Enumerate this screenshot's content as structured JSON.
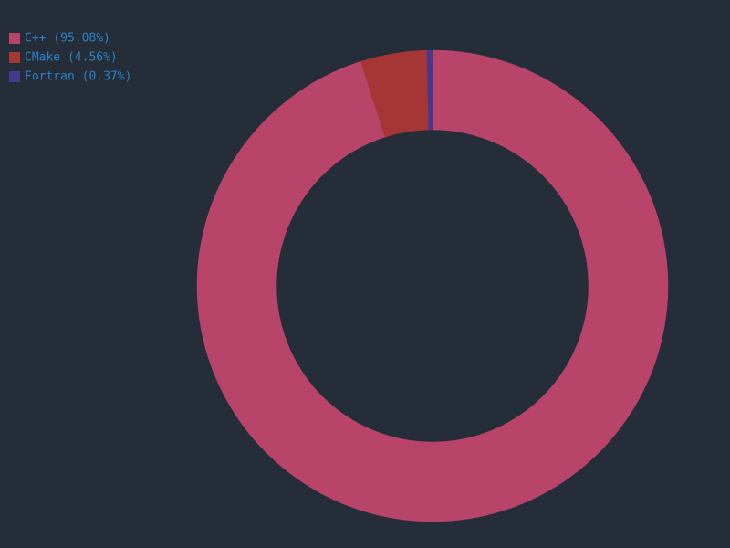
{
  "chart_data": {
    "type": "donut",
    "categories": [
      "C++ (95.08%)",
      "CMake (4.56%)",
      "Fortran (0.37%)"
    ],
    "values": [
      95.08,
      4.56,
      0.37
    ],
    "colors": [
      "#b8446a",
      "#a63535",
      "#45398e"
    ]
  }
}
